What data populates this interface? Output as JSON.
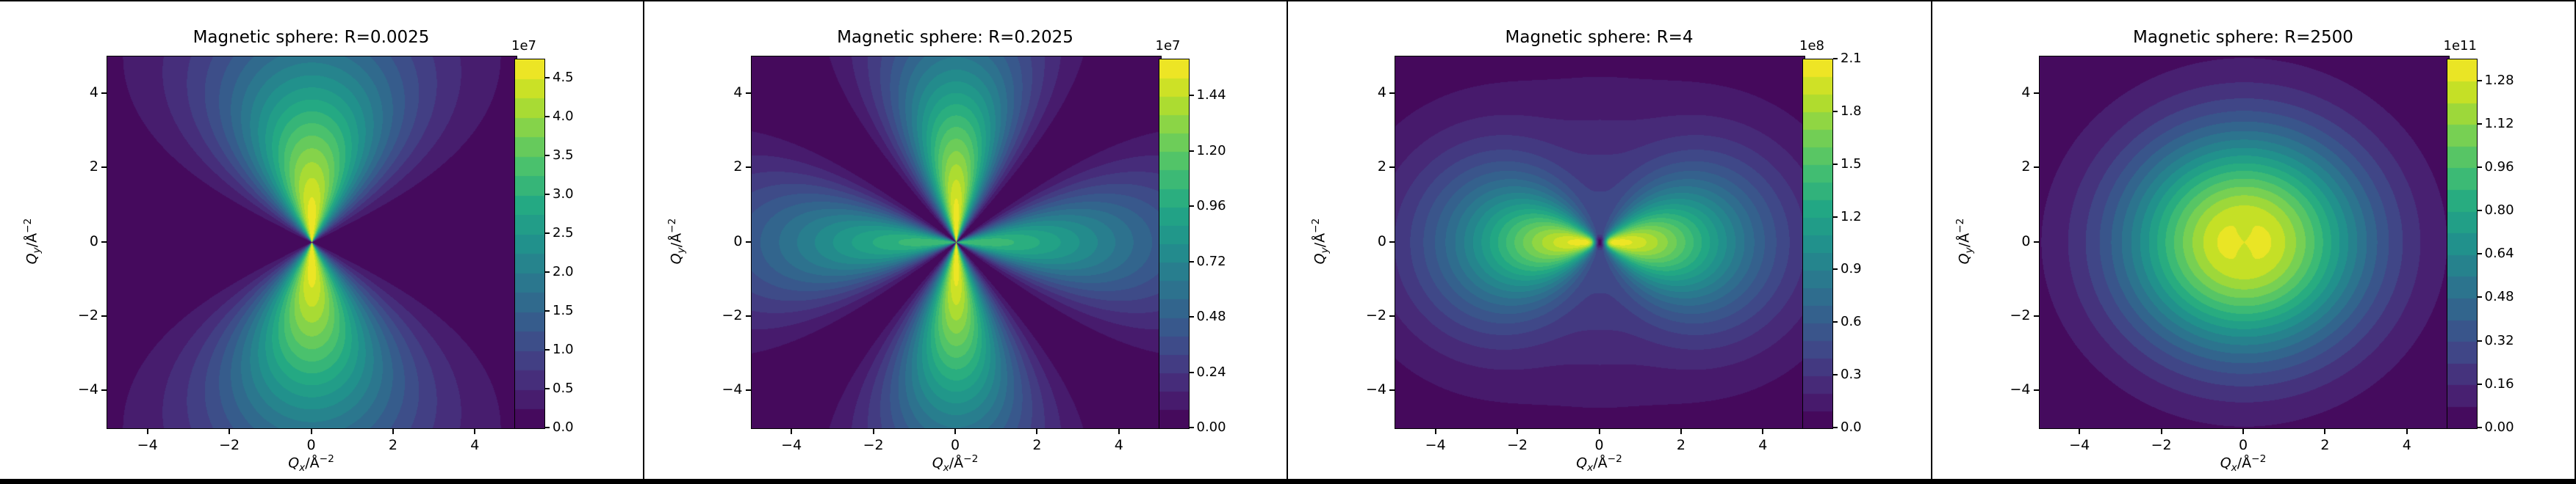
{
  "figure": {
    "background": "#ffffff",
    "border_color": "#000000",
    "colormap": "viridis",
    "colormap_anchors": [
      "#440154",
      "#482475",
      "#414487",
      "#355f8d",
      "#2a788e",
      "#21918c",
      "#22a884",
      "#44bf70",
      "#7ad151",
      "#bddf26",
      "#fde725"
    ]
  },
  "chart_data": [
    {
      "type": "heatmap",
      "title": "Magnetic sphere: R=0.0025",
      "R": "0.0025",
      "xlim": [
        -5,
        5
      ],
      "ylim": [
        -5,
        5
      ],
      "x_tick_values": [
        -4,
        -2,
        0,
        2,
        4
      ],
      "x_tick_labels": [
        "−4",
        "−2",
        "0",
        "2",
        "4"
      ],
      "y_tick_values": [
        4,
        2,
        0,
        -2,
        -4
      ],
      "y_tick_labels": [
        "4",
        "2",
        "0",
        "−2",
        "−4"
      ],
      "xlabel_parts": {
        "symbol": "Q",
        "sub": "x",
        "slash": "/",
        "unit": "Å",
        "sup": "−2"
      },
      "ylabel_parts": {
        "symbol": "Q",
        "sub": "y",
        "slash": "/",
        "unit": "Å",
        "sup": "−2"
      },
      "pattern_description": "two vertical teardrop lobes pinched at origin, bright spike along Qy axis, dark along Qx axis",
      "pattern": {
        "name": "axial_y",
        "env": 5.2
      },
      "n_levels": 19,
      "colorbar": {
        "exponent": "1e7",
        "tick_labels": [
          "0.0",
          "0.5",
          "1.0",
          "1.5",
          "2.0",
          "2.5",
          "3.0",
          "3.5",
          "4.0",
          "4.5"
        ],
        "tick_values": [
          0.0,
          0.5,
          1.0,
          1.5,
          2.0,
          2.5,
          3.0,
          3.5,
          4.0,
          4.5
        ],
        "vmax_display": 4.75
      }
    },
    {
      "type": "heatmap",
      "title": "Magnetic sphere: R=0.2025",
      "R": "0.2025",
      "xlim": [
        -5,
        5
      ],
      "ylim": [
        -5,
        5
      ],
      "x_tick_values": [
        -4,
        -2,
        0,
        2,
        4
      ],
      "x_tick_labels": [
        "−4",
        "−2",
        "0",
        "2",
        "4"
      ],
      "y_tick_values": [
        4,
        2,
        0,
        -2,
        -4
      ],
      "y_tick_labels": [
        "4",
        "2",
        "0",
        "−2",
        "−4"
      ],
      "xlabel_parts": {
        "symbol": "Q",
        "sub": "x",
        "slash": "/",
        "unit": "Å",
        "sup": "−2"
      },
      "ylabel_parts": {
        "symbol": "Q",
        "sub": "y",
        "slash": "/",
        "unit": "Å",
        "sup": "−2"
      },
      "pattern_description": "four-lobe clover: bright vertical lobes, dimmer horizontal lobes, dark diagonals",
      "pattern": {
        "name": "four_lobe",
        "env": 5.2
      },
      "n_levels": 20,
      "colorbar": {
        "exponent": "1e7",
        "tick_labels": [
          "0.00",
          "0.24",
          "0.48",
          "0.72",
          "0.96",
          "1.20",
          "1.44"
        ],
        "tick_values": [
          0.0,
          0.24,
          0.48,
          0.72,
          0.96,
          1.2,
          1.44
        ],
        "vmax_display": 1.6
      }
    },
    {
      "type": "heatmap",
      "title": "Magnetic sphere: R=4",
      "R": "4",
      "xlim": [
        -5,
        5
      ],
      "ylim": [
        -5,
        5
      ],
      "x_tick_values": [
        -4,
        -2,
        0,
        2,
        4
      ],
      "x_tick_labels": [
        "−4",
        "−2",
        "0",
        "2",
        "4"
      ],
      "y_tick_values": [
        4,
        2,
        0,
        -2,
        -4
      ],
      "y_tick_labels": [
        "4",
        "2",
        "0",
        "−2",
        "−4"
      ],
      "xlabel_parts": {
        "symbol": "Q",
        "sub": "x",
        "slash": "/",
        "unit": "Å",
        "sup": "−2"
      },
      "ylabel_parts": {
        "symbol": "Q",
        "sub": "y",
        "slash": "/",
        "unit": "Å",
        "sup": "−2"
      },
      "pattern_description": "horizontal butterfly: two bright yellow lobes along Qx pinched at origin inside peanut-shaped rings",
      "pattern": {
        "name": "butterfly_x",
        "env": 3.6,
        "core": 0.15
      },
      "n_levels": 21,
      "colorbar": {
        "exponent": "1e8",
        "tick_labels": [
          "0.0",
          "0.3",
          "0.6",
          "0.9",
          "1.2",
          "1.5",
          "1.8",
          "2.1"
        ],
        "tick_values": [
          0.0,
          0.3,
          0.6,
          0.9,
          1.2,
          1.5,
          1.8,
          2.1
        ],
        "vmax_display": 2.1
      }
    },
    {
      "type": "heatmap",
      "title": "Magnetic sphere: R=2500",
      "R": "2500",
      "xlim": [
        -5,
        5
      ],
      "ylim": [
        -5,
        5
      ],
      "x_tick_values": [
        -4,
        -2,
        0,
        2,
        4
      ],
      "x_tick_labels": [
        "−4",
        "−2",
        "0",
        "2",
        "4"
      ],
      "y_tick_values": [
        4,
        2,
        0,
        -2,
        -4
      ],
      "y_tick_labels": [
        "4",
        "2",
        "0",
        "−2",
        "−4"
      ],
      "xlabel_parts": {
        "symbol": "Q",
        "sub": "x",
        "slash": "/",
        "unit": "Å",
        "sup": "−2"
      },
      "ylabel_parts": {
        "symbol": "Q",
        "sub": "y",
        "slash": "/",
        "unit": "Å",
        "sup": "−2"
      },
      "pattern_description": "nearly isotropic concentric rings, bright yellow centre with two small twin maxima on Qx axis",
      "pattern": {
        "name": "isotropic_center",
        "env": 2.95,
        "waist": 0.5
      },
      "n_levels": 17,
      "colorbar": {
        "exponent": "1e11",
        "tick_labels": [
          "0.00",
          "0.16",
          "0.32",
          "0.48",
          "0.64",
          "0.80",
          "0.96",
          "1.12",
          "1.28"
        ],
        "tick_values": [
          0.0,
          0.16,
          0.32,
          0.48,
          0.64,
          0.8,
          0.96,
          1.12,
          1.28
        ],
        "vmax_display": 1.36
      }
    }
  ]
}
